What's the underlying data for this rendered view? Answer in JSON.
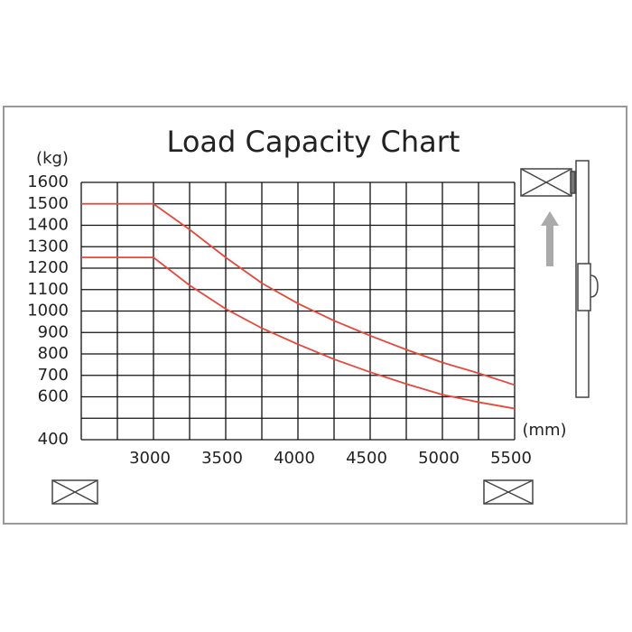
{
  "chart_data": {
    "type": "line",
    "title": "Load Capacity Chart",
    "y_label": "(kg)",
    "x_label": "(mm)",
    "x": [
      2500,
      3000,
      3250,
      3500,
      3750,
      4000,
      4250,
      4500,
      4750,
      5000,
      5250,
      5500
    ],
    "series": [
      {
        "color": "#e8473a",
        "values": [
          1500,
          1500,
          1380,
          1250,
          1130,
          1035,
          955,
          885,
          820,
          760,
          710,
          655
        ]
      },
      {
        "color": "#e8473a",
        "values": [
          1250,
          1250,
          1120,
          1010,
          920,
          845,
          775,
          715,
          660,
          610,
          575,
          545
        ]
      }
    ],
    "xlim": [
      2500,
      5500
    ],
    "ylim": [
      400,
      1600
    ],
    "xticks": [
      3000,
      3500,
      4000,
      4500,
      5000,
      5500
    ],
    "yticks": [
      400,
      600,
      700,
      800,
      900,
      1000,
      1100,
      1200,
      1300,
      1400,
      1500,
      1600
    ],
    "xgrid": [
      2500,
      2750,
      3000,
      3250,
      3500,
      3750,
      4000,
      4250,
      4500,
      4750,
      5000,
      5250,
      5500
    ],
    "ygrid": [
      400,
      500,
      600,
      700,
      800,
      900,
      1000,
      1100,
      1200,
      1300,
      1400,
      1500,
      1600
    ],
    "grid": true
  }
}
